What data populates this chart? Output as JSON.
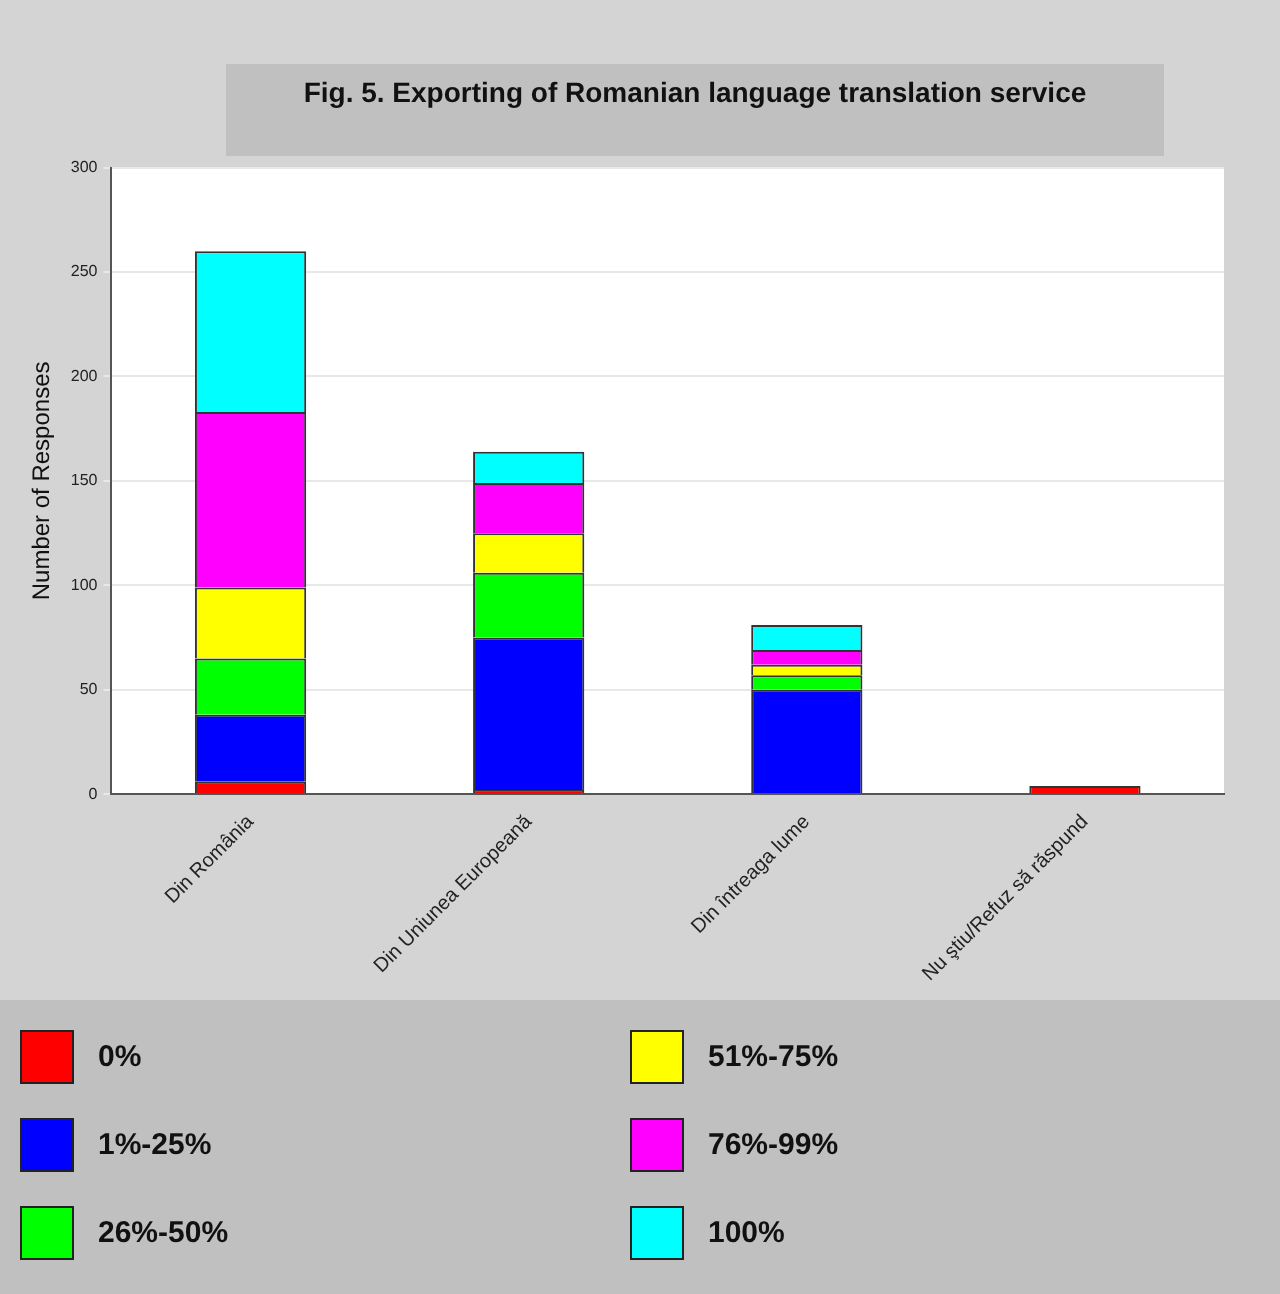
{
  "chart_data": {
    "type": "bar",
    "title": "Fig. 5. Exporting of Romanian language translation service",
    "ylabel": "Number of Responses",
    "categories": [
      "Din România",
      "Din Uniunea Europeană",
      "Din întreaga lume",
      "Nu ştiu/Refuz să răspund"
    ],
    "stacked": true,
    "ylim": [
      0,
      300
    ],
    "yticks": [
      0,
      50,
      100,
      150,
      200,
      250,
      300
    ],
    "grid": "y",
    "legend": "bottom",
    "series": [
      {
        "name": "0%",
        "color": "#ff0000",
        "values": [
          6,
          2,
          null,
          4
        ]
      },
      {
        "name": "1%-25%",
        "color": "#0000ff",
        "values": [
          32,
          73,
          50,
          0
        ]
      },
      {
        "name": "26%-50%",
        "color": "#00ff00",
        "values": [
          27,
          31,
          7,
          0
        ]
      },
      {
        "name": "51%-75%",
        "color": "#ffff00",
        "values": [
          34,
          19,
          5,
          0
        ]
      },
      {
        "name": "76%-99%",
        "color": "#ff00ff",
        "values": [
          84,
          24,
          7,
          0
        ]
      },
      {
        "name": "100%",
        "color": "#00ffff",
        "values": [
          77,
          15,
          12,
          0
        ]
      }
    ]
  }
}
